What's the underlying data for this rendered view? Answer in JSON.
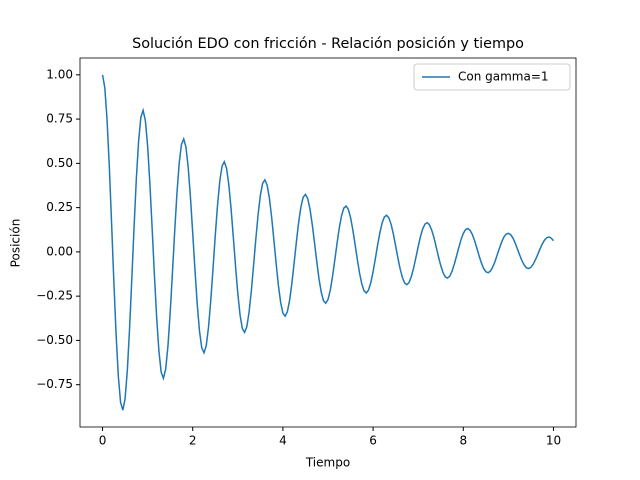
{
  "chart_data": {
    "type": "line",
    "title": "Solución EDO con fricción - Relación posición y tiempo",
    "x_label": "Tiempo",
    "y_label": "Posición",
    "legend": "upper right",
    "xlim": [
      -0.5,
      10.5
    ],
    "ylim": [
      -0.989,
      1.095
    ],
    "xticks": [
      0,
      2,
      4,
      6,
      8,
      10
    ],
    "yticks": [
      {
        "value": -0.75,
        "label": "−0.75"
      },
      {
        "value": -0.5,
        "label": "−0.50"
      },
      {
        "value": -0.25,
        "label": "−0.25"
      },
      {
        "value": 0,
        "label": "0.00"
      },
      {
        "value": 0.25,
        "label": "0.25"
      },
      {
        "value": 0.5,
        "label": "0.50"
      },
      {
        "value": 0.75,
        "label": "0.75"
      },
      {
        "value": 1,
        "label": "1.00"
      }
    ],
    "x": [
      0,
      0.05,
      0.1,
      0.15,
      0.2,
      0.25,
      0.3,
      0.35,
      0.4,
      0.45,
      0.5,
      0.55,
      0.6,
      0.65,
      0.7,
      0.75,
      0.8,
      0.85,
      0.9,
      0.95,
      1,
      1.05,
      1.1,
      1.15,
      1.2,
      1.25,
      1.3,
      1.35,
      1.4,
      1.45,
      1.5,
      1.55,
      1.6,
      1.65,
      1.7,
      1.75,
      1.8,
      1.85,
      1.9,
      1.95,
      2,
      2.05,
      2.1,
      2.15,
      2.2,
      2.25,
      2.3,
      2.35,
      2.4,
      2.45,
      2.5,
      2.55,
      2.6,
      2.65,
      2.7,
      2.75,
      2.8,
      2.85,
      2.9,
      2.95,
      3,
      3.05,
      3.1,
      3.15,
      3.2,
      3.25,
      3.3,
      3.35,
      3.4,
      3.45,
      3.5,
      3.55,
      3.6,
      3.65,
      3.7,
      3.75,
      3.8,
      3.85,
      3.9,
      3.95,
      4,
      4.05,
      4.1,
      4.15,
      4.2,
      4.25,
      4.3,
      4.35,
      4.4,
      4.45,
      4.5,
      4.55,
      4.6,
      4.65,
      4.7,
      4.75,
      4.8,
      4.85,
      4.9,
      4.95,
      5,
      5.05,
      5.1,
      5.15,
      5.2,
      5.25,
      5.3,
      5.35,
      5.4,
      5.45,
      5.5,
      5.55,
      5.6,
      5.65,
      5.7,
      5.75,
      5.8,
      5.85,
      5.9,
      5.95,
      6,
      6.05,
      6.1,
      6.15,
      6.2,
      6.25,
      6.3,
      6.35,
      6.4,
      6.45,
      6.5,
      6.55,
      6.6,
      6.65,
      6.7,
      6.75,
      6.8,
      6.85,
      6.9,
      6.95,
      7,
      7.05,
      7.1,
      7.15,
      7.2,
      7.25,
      7.3,
      7.35,
      7.4,
      7.45,
      7.5,
      7.55,
      7.6,
      7.65,
      7.7,
      7.75,
      7.8,
      7.85,
      7.9,
      7.95,
      8,
      8.05,
      8.1,
      8.15,
      8.2,
      8.25,
      8.3,
      8.35,
      8.4,
      8.45,
      8.5,
      8.55,
      8.6,
      8.65,
      8.7,
      8.75,
      8.8,
      8.85,
      8.9,
      8.95,
      9,
      9.05,
      9.1,
      9.15,
      9.2,
      9.25,
      9.3,
      9.35,
      9.4,
      9.45,
      9.5,
      9.55,
      9.6,
      9.65,
      9.7,
      9.75,
      9.8,
      9.85,
      9.9,
      9.95,
      10
    ],
    "series": [
      {
        "name": "Con gamma=1",
        "color": "#1f77b4",
        "values": [
          1,
          0.928,
          0.747,
          0.482,
          0.165,
          -0.163,
          -0.464,
          -0.702,
          -0.85,
          -0.894,
          -0.829,
          -0.668,
          -0.43,
          -0.148,
          0.146,
          0.415,
          0.627,
          0.76,
          0.799,
          0.741,
          0.597,
          0.385,
          0.132,
          -0.13,
          -0.37,
          -0.56,
          -0.679,
          -0.714,
          -0.662,
          -0.533,
          -0.344,
          -0.118,
          0.116,
          0.331,
          0.501,
          0.607,
          0.638,
          0.592,
          0.476,
          0.307,
          0.105,
          -0.104,
          -0.296,
          -0.447,
          -0.542,
          -0.57,
          -0.529,
          -0.426,
          -0.274,
          -0.094,
          0.093,
          0.264,
          0.4,
          0.484,
          0.509,
          0.473,
          0.38,
          0.245,
          0.084,
          -0.083,
          -0.236,
          -0.357,
          -0.433,
          -0.455,
          -0.422,
          -0.34,
          -0.219,
          -0.075,
          0.074,
          0.211,
          0.319,
          0.387,
          0.407,
          0.377,
          0.304,
          0.196,
          0.067,
          -0.066,
          -0.189,
          -0.285,
          -0.346,
          -0.363,
          -0.337,
          -0.271,
          -0.175,
          -0.06,
          0.059,
          0.169,
          0.255,
          0.309,
          0.325,
          0.301,
          0.243,
          0.156,
          0.054,
          -0.053,
          -0.151,
          -0.228,
          -0.276,
          -0.29,
          -0.269,
          -0.217,
          -0.14,
          -0.048,
          0.047,
          0.135,
          0.204,
          0.247,
          0.259,
          0.241,
          0.194,
          0.125,
          0.043,
          -0.042,
          -0.12,
          -0.182,
          -0.22,
          -0.232,
          -0.215,
          -0.173,
          -0.112,
          -0.038,
          0.038,
          0.107,
          0.163,
          0.197,
          0.207,
          0.192,
          0.155,
          0.1,
          0.034,
          -0.034,
          -0.096,
          -0.145,
          -0.176,
          -0.185,
          -0.172,
          -0.138,
          -0.089,
          -0.031,
          0.03,
          0.086,
          0.13,
          0.157,
          0.165,
          0.153,
          0.123,
          0.08,
          0.027,
          -0.027,
          -0.077,
          -0.116,
          -0.141,
          -0.148,
          -0.137,
          -0.11,
          -0.071,
          -0.024,
          0.024,
          0.069,
          0.104,
          0.126,
          0.132,
          0.122,
          0.099,
          0.064,
          0.022,
          -0.022,
          -0.061,
          -0.093,
          -0.112,
          -0.118,
          -0.109,
          -0.088,
          -0.057,
          -0.019,
          0.019,
          0.055,
          0.083,
          0.1,
          0.105,
          0.098,
          0.079,
          0.051,
          0.017,
          -0.017,
          -0.049,
          -0.074,
          -0.09,
          -0.094,
          -0.087,
          -0.07,
          -0.045,
          -0.016,
          0.015,
          0.044,
          0.066,
          0.08,
          0.084,
          0.078,
          0.063
        ]
      }
    ]
  }
}
